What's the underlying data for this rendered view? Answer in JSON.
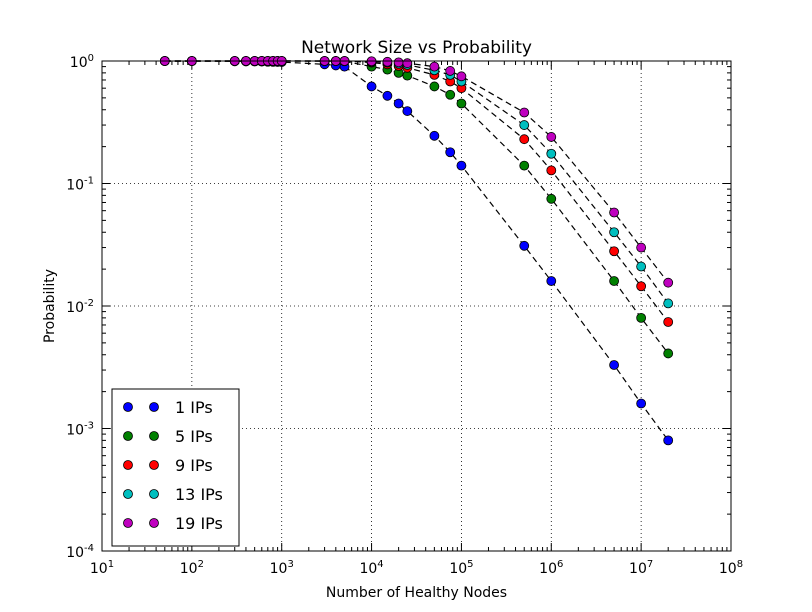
{
  "chart_data": {
    "type": "scatter",
    "title": "Network Size vs Probability",
    "xlabel": "Number of Healthy Nodes",
    "ylabel": "Probability",
    "xscale": "log",
    "yscale": "log",
    "xlim": [
      10,
      100000000
    ],
    "ylim": [
      0.0001,
      1
    ],
    "grid": true,
    "legend_position": "lower-left",
    "x_ticks": [
      {
        "base": "10",
        "exp": "1"
      },
      {
        "base": "10",
        "exp": "2"
      },
      {
        "base": "10",
        "exp": "3"
      },
      {
        "base": "10",
        "exp": "4"
      },
      {
        "base": "10",
        "exp": "5"
      },
      {
        "base": "10",
        "exp": "6"
      },
      {
        "base": "10",
        "exp": "7"
      },
      {
        "base": "10",
        "exp": "8"
      }
    ],
    "y_ticks": [
      {
        "base": "10",
        "exp": "-4"
      },
      {
        "base": "10",
        "exp": "-3"
      },
      {
        "base": "10",
        "exp": "-2"
      },
      {
        "base": "10",
        "exp": "-1"
      },
      {
        "base": "10",
        "exp": "0"
      }
    ],
    "x": [
      50,
      100,
      300,
      400,
      500,
      600,
      700,
      800,
      900,
      1000,
      3000,
      4000,
      5000,
      10000,
      15000,
      20000,
      25000,
      50000,
      75000,
      100000,
      500000,
      1000000,
      5000000,
      10000000,
      20000000
    ],
    "series": [
      {
        "name": "1 IPs",
        "color": "#0000ff",
        "values": [
          0.999,
          0.998,
          0.994,
          0.992,
          0.99,
          0.988,
          0.986,
          0.984,
          0.982,
          0.98,
          0.94,
          0.92,
          0.9,
          0.62,
          0.52,
          0.45,
          0.39,
          0.245,
          0.18,
          0.14,
          0.031,
          0.016,
          0.0033,
          0.0016,
          0.0008
        ]
      },
      {
        "name": "5 IPs",
        "color": "#008000",
        "values": [
          1,
          1,
          1,
          1,
          1,
          1,
          1,
          1,
          1,
          1,
          0.998,
          0.997,
          0.995,
          0.9,
          0.85,
          0.8,
          0.76,
          0.62,
          0.53,
          0.45,
          0.14,
          0.075,
          0.016,
          0.008,
          0.0041
        ]
      },
      {
        "name": "9 IPs",
        "color": "#ff0000",
        "values": [
          1,
          1,
          1,
          1,
          1,
          1,
          1,
          1,
          1,
          1,
          1,
          1,
          1,
          0.97,
          0.94,
          0.91,
          0.88,
          0.77,
          0.68,
          0.6,
          0.23,
          0.128,
          0.028,
          0.0145,
          0.0074
        ]
      },
      {
        "name": "13 IPs",
        "color": "#00bfbf",
        "values": [
          1,
          1,
          1,
          1,
          1,
          1,
          1,
          1,
          1,
          1,
          1,
          1,
          1,
          0.985,
          0.97,
          0.95,
          0.93,
          0.84,
          0.77,
          0.68,
          0.3,
          0.175,
          0.04,
          0.021,
          0.0105
        ]
      },
      {
        "name": "19 IPs",
        "color": "#bf00bf",
        "values": [
          1,
          1,
          1,
          1,
          1,
          1,
          1,
          1,
          1,
          1,
          1,
          1,
          1,
          0.995,
          0.985,
          0.975,
          0.96,
          0.9,
          0.83,
          0.75,
          0.38,
          0.24,
          0.058,
          0.03,
          0.0155
        ]
      }
    ]
  }
}
